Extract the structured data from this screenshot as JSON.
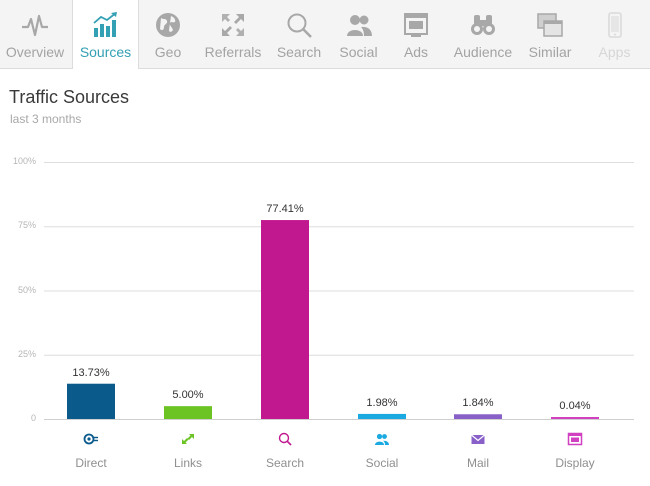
{
  "nav": {
    "tabs": [
      {
        "label": "Overview",
        "icon": "pulse-icon",
        "state": "normal"
      },
      {
        "label": "Sources",
        "icon": "bar-trend-icon",
        "state": "active"
      },
      {
        "label": "Geo",
        "icon": "globe-icon",
        "state": "normal"
      },
      {
        "label": "Referrals",
        "icon": "arrows-icon",
        "state": "normal"
      },
      {
        "label": "Search",
        "icon": "magnifier-icon",
        "state": "normal"
      },
      {
        "label": "Social",
        "icon": "people-icon",
        "state": "normal"
      },
      {
        "label": "Ads",
        "icon": "ad-window-icon",
        "state": "normal"
      },
      {
        "label": "Audience",
        "icon": "binoculars-icon",
        "state": "normal"
      },
      {
        "label": "Similar",
        "icon": "windows-icon",
        "state": "normal"
      },
      {
        "label": "Apps",
        "icon": "phone-icon",
        "state": "disabled"
      }
    ]
  },
  "header": {
    "title": "Traffic Sources",
    "subtitle": "last 3 months"
  },
  "colors": {
    "active_tab": "#33a0b4",
    "direct": "#0b5a8c",
    "links": "#6cc324",
    "search": "#c2188f",
    "social": "#1aa9e0",
    "mail": "#8860c8",
    "display": "#d040c0"
  },
  "chart_data": {
    "type": "bar",
    "categories": [
      "Direct",
      "Links",
      "Search",
      "Social",
      "Mail",
      "Display"
    ],
    "values": [
      13.73,
      5.0,
      77.41,
      1.98,
      1.84,
      0.04
    ],
    "value_labels": [
      "13.73%",
      "5.00%",
      "77.41%",
      "1.98%",
      "1.84%",
      "0.04%"
    ],
    "category_icons": [
      "direct-icon",
      "links-icon",
      "search-icon",
      "social-icon",
      "mail-icon",
      "display-icon"
    ],
    "yticks": [
      {
        "value": 100,
        "label": "100%"
      },
      {
        "value": 75,
        "label": "75%"
      },
      {
        "value": 50,
        "label": "50%"
      },
      {
        "value": 25,
        "label": "25%"
      },
      {
        "value": 0,
        "label": "0"
      }
    ],
    "ylim": [
      0,
      100
    ],
    "grid": true,
    "legend": "none"
  }
}
